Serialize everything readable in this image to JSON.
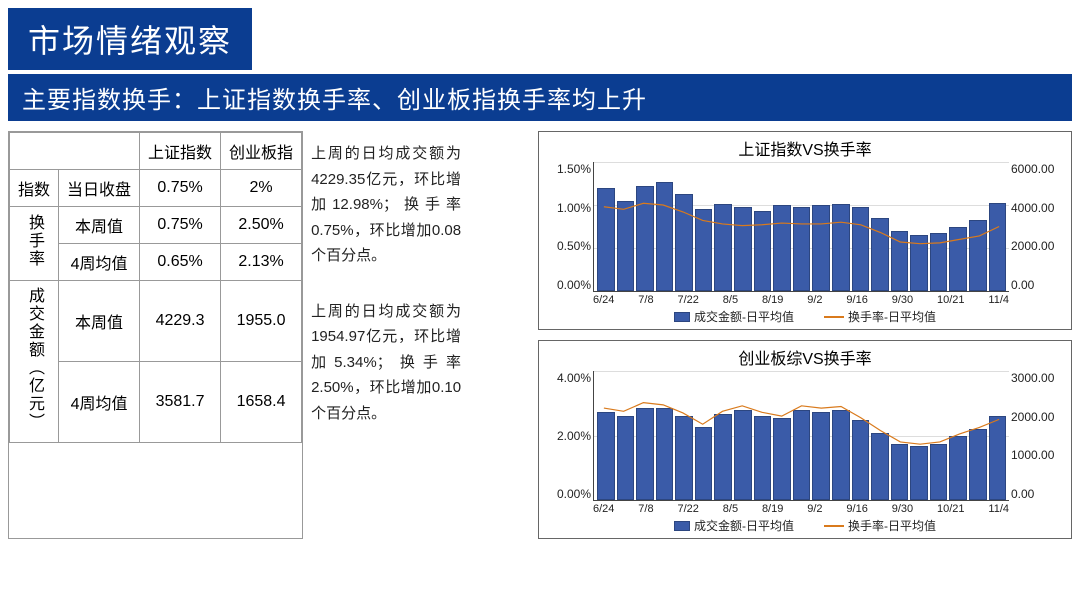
{
  "header": {
    "title": "市场情绪观察",
    "subtitle": "主要指数换手：上证指数换手率、创业板指换手率均上升"
  },
  "table": {
    "col_headers": [
      "上证指数",
      "创业板指"
    ],
    "groups": [
      {
        "label": "指数",
        "rows": [
          {
            "sub": "当日收盘",
            "v1": "0.75%",
            "v2": "2%"
          }
        ]
      },
      {
        "label": "换手率",
        "rows": [
          {
            "sub": "本周值",
            "v1": "0.75%",
            "v2": "2.50%"
          },
          {
            "sub": "4周均值",
            "v1": "0.65%",
            "v2": "2.13%"
          }
        ]
      },
      {
        "label": "成交金额（亿元）",
        "rows": [
          {
            "sub": "本周值",
            "v1": "4229.3",
            "v2": "1955.0"
          },
          {
            "sub": "4周均值",
            "v1": "3581.7",
            "v2": "1658.4"
          }
        ]
      }
    ]
  },
  "paragraphs": {
    "p1": "上周的日均成交额为4229.35亿元，环比增加12.98%；换手率0.75%，环比增加0.08个百分点。",
    "p2": "上周的日均成交额为1954.97亿元，环比增加5.34%；换手率2.50%，环比增加0.10个百分点。"
  },
  "charts": [
    {
      "title": "上证指数VS换手率",
      "type": "bar+line",
      "y_left": {
        "min": 0,
        "max": 1.5,
        "ticks": [
          "1.50%",
          "1.00%",
          "0.50%",
          "0.00%"
        ]
      },
      "y_right": {
        "min": 0,
        "max": 6000,
        "ticks": [
          "6000.00",
          "4000.00",
          "2000.00",
          "0.00"
        ]
      },
      "x_labels": [
        "6/24",
        "7/8",
        "7/22",
        "8/5",
        "8/19",
        "9/2",
        "9/16",
        "9/30",
        "10/21",
        "11/4"
      ],
      "bars": [
        4800,
        4200,
        4900,
        5050,
        4500,
        3800,
        4050,
        3900,
        3700,
        4000,
        3900,
        4000,
        4050,
        3900,
        3400,
        2800,
        2600,
        2700,
        3000,
        3300,
        4100
      ],
      "bar_max": 6000,
      "line": [
        0.98,
        0.95,
        1.02,
        1.0,
        0.92,
        0.82,
        0.78,
        0.76,
        0.77,
        0.79,
        0.78,
        0.78,
        0.8,
        0.77,
        0.68,
        0.57,
        0.55,
        0.56,
        0.6,
        0.64,
        0.75
      ],
      "line_max": 1.5,
      "legend_bar": "成交金额-日平均值",
      "legend_line": "换手率-日平均值",
      "bar_color": "#3a5ba8",
      "line_color": "#d97a1c",
      "grid_color": "#dddddd"
    },
    {
      "title": "创业板综VS换手率",
      "type": "bar+line",
      "y_left": {
        "min": 0,
        "max": 4.0,
        "ticks": [
          "4.00%",
          "2.00%",
          "0.00%"
        ]
      },
      "y_right": {
        "min": 0,
        "max": 3000,
        "ticks": [
          "3000.00",
          "2000.00",
          "1000.00",
          "0.00"
        ]
      },
      "x_labels": [
        "6/24",
        "7/8",
        "7/22",
        "8/5",
        "8/19",
        "9/2",
        "9/16",
        "9/30",
        "10/21",
        "11/4"
      ],
      "bars": [
        2050,
        1950,
        2150,
        2150,
        1950,
        1700,
        2000,
        2100,
        1950,
        1900,
        2100,
        2050,
        2100,
        1850,
        1550,
        1300,
        1250,
        1300,
        1500,
        1650,
        1950
      ],
      "bar_max": 3000,
      "line": [
        2.85,
        2.75,
        3.02,
        2.95,
        2.7,
        2.35,
        2.75,
        2.92,
        2.72,
        2.6,
        2.92,
        2.85,
        2.9,
        2.55,
        2.15,
        1.8,
        1.73,
        1.8,
        2.05,
        2.25,
        2.5
      ],
      "line_max": 4.0,
      "legend_bar": "成交金额-日平均值",
      "legend_line": "换手率-日平均值",
      "bar_color": "#3a5ba8",
      "line_color": "#d97a1c",
      "grid_color": "#dddddd"
    }
  ],
  "colors": {
    "brand": "#0b3d91",
    "bar": "#3a5ba8",
    "line": "#d97a1c"
  }
}
